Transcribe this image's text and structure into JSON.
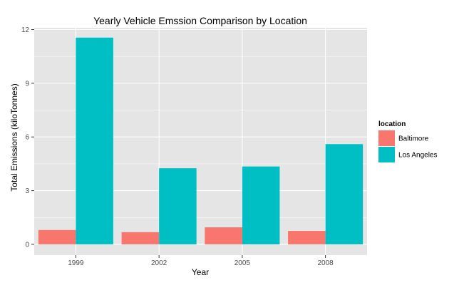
{
  "chart_data": {
    "type": "bar",
    "title": "Yearly Vehicle Emssion Comparison by Location",
    "xlabel": "Year",
    "ylabel": "Total Emissions (kiloTonnes)",
    "categories": [
      "1999",
      "2002",
      "2005",
      "2008"
    ],
    "series": [
      {
        "name": "Baltimore",
        "color": "#F8766D",
        "values": [
          0.8,
          0.68,
          0.95,
          0.75
        ]
      },
      {
        "name": "Los Angeles",
        "color": "#00BFC4",
        "values": [
          11.55,
          4.25,
          4.35,
          5.6
        ]
      }
    ],
    "ylim": [
      -0.6,
      12.1
    ],
    "yticks": [
      0,
      3,
      6,
      9,
      12
    ],
    "grid": true,
    "panel_background": "#E5E5E5",
    "grid_color": "#FFFFFF",
    "legend": {
      "title": "location",
      "placement": "right"
    }
  }
}
